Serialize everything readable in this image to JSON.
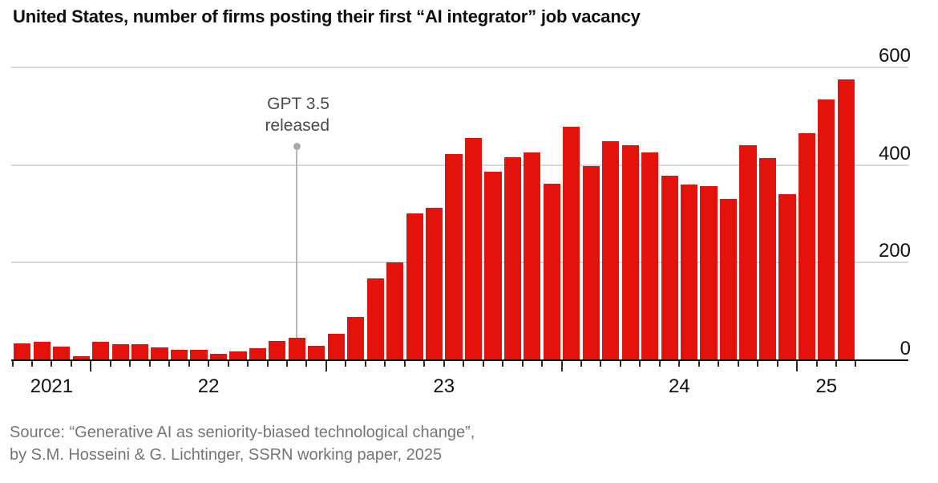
{
  "title": "United States, number of firms posting their first “AI integrator” job vacancy",
  "annotation": {
    "line1": "GPT 3.5",
    "line2": "released"
  },
  "source": {
    "line1": "Source: “Generative AI as seniority-biased technological change”,",
    "line2": "by S.M. Hosseini & G. Lichtinger, SSRN working paper, 2025"
  },
  "colors": {
    "bar": "#e3120b",
    "gridline": "#d8d8d8",
    "axis": "#0c0c0c",
    "tick": "#2b2b2b",
    "annotation_line": "#b7b7b7",
    "annotation_dot": "#a9a9a9",
    "annotation_text": "#4a4a4a",
    "source_text": "#757575",
    "label_text": "#111111"
  },
  "chart_data": {
    "type": "bar",
    "title": "United States, number of firms posting their first “AI integrator” job vacancy",
    "x": [
      "2021-09",
      "2021-10",
      "2021-11",
      "2021-12",
      "2022-01",
      "2022-02",
      "2022-03",
      "2022-04",
      "2022-05",
      "2022-06",
      "2022-07",
      "2022-08",
      "2022-09",
      "2022-10",
      "2022-11",
      "2022-12",
      "2023-01",
      "2023-02",
      "2023-03",
      "2023-04",
      "2023-05",
      "2023-06",
      "2023-07",
      "2023-08",
      "2023-09",
      "2023-10",
      "2023-11",
      "2023-12",
      "2024-01",
      "2024-02",
      "2024-03",
      "2024-04",
      "2024-05",
      "2024-06",
      "2024-07",
      "2024-08",
      "2024-09",
      "2024-10",
      "2024-11",
      "2024-12",
      "2025-01",
      "2025-02",
      "2025-03"
    ],
    "values": [
      35,
      37,
      28,
      8,
      38,
      33,
      33,
      26,
      22,
      22,
      13,
      18,
      25,
      40,
      46,
      29,
      54,
      89,
      167,
      201,
      301,
      312,
      422,
      455,
      386,
      416,
      426,
      362,
      479,
      397,
      448,
      441,
      425,
      378,
      360,
      357,
      331,
      440,
      415,
      340,
      465,
      535,
      575
    ],
    "xtick_labels": [
      "2021",
      "22",
      "23",
      "24",
      "25"
    ],
    "yticks": [
      0,
      200,
      400,
      600
    ],
    "ylim": [
      0,
      600
    ],
    "ytick_side": "right",
    "grid": "horizontal",
    "legend": "none",
    "annotation": {
      "text": "GPT 3.5 released",
      "x": "2022-11"
    }
  }
}
